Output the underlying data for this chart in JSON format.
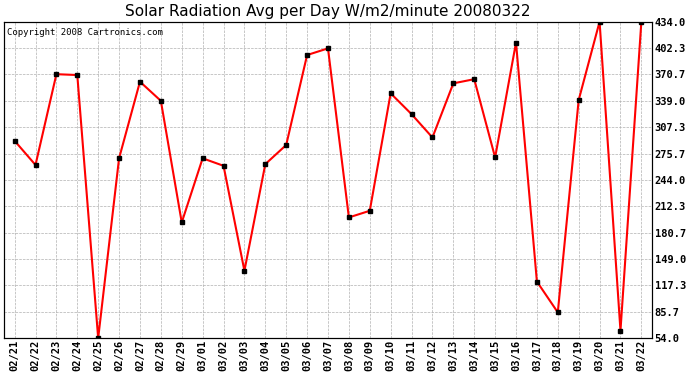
{
  "title": "Solar Radiation Avg per Day W/m2/minute 20080322",
  "copyright": "Copyright 2008 Cartronics.com",
  "dates": [
    "02/21",
    "02/22",
    "02/23",
    "02/24",
    "02/25",
    "02/26",
    "02/27",
    "02/28",
    "02/29",
    "03/01",
    "03/02",
    "03/03",
    "03/04",
    "03/05",
    "03/06",
    "03/07",
    "03/08",
    "03/09",
    "03/10",
    "03/11",
    "03/12",
    "03/13",
    "03/14",
    "03/15",
    "03/16",
    "03/17",
    "03/18",
    "03/19",
    "03/20",
    "03/21",
    "03/22"
  ],
  "values": [
    291,
    262,
    371,
    370,
    54,
    270,
    362,
    339,
    193,
    270,
    261,
    135,
    263,
    286,
    394,
    402,
    199,
    207,
    348,
    323,
    295,
    360,
    365,
    271,
    409,
    122,
    85,
    340,
    434,
    63,
    434
  ],
  "y_ticks": [
    54.0,
    85.7,
    117.3,
    149.0,
    180.7,
    212.3,
    244.0,
    275.7,
    307.3,
    339.0,
    370.7,
    402.3,
    434.0
  ],
  "y_min": 54.0,
  "y_max": 434.0,
  "line_color": "#ff0000",
  "marker_color": "#000000",
  "bg_color": "#ffffff",
  "plot_bg_color": "#ffffff",
  "grid_color": "#b0b0b0",
  "title_fontsize": 11,
  "tick_fontsize": 7.5,
  "copyright_fontsize": 6.5
}
